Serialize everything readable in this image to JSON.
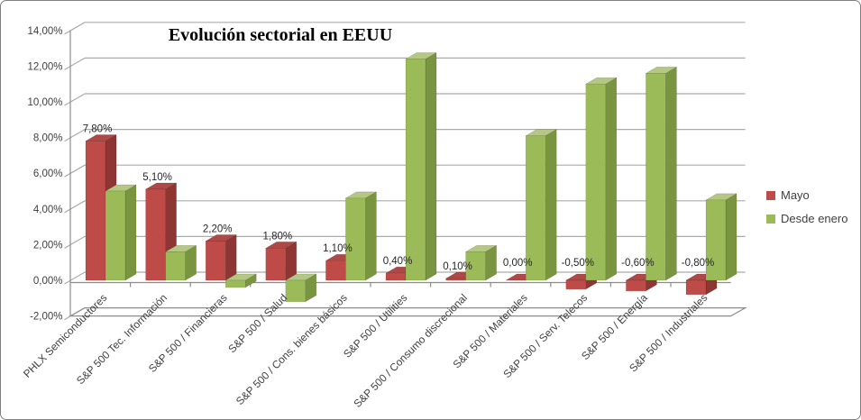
{
  "colors": {
    "background": "#FFFFFF",
    "border": "#7F7F7F",
    "gridline": "#ABABAB",
    "axis_line": "#8C8C8C",
    "axis_text": "#3F3F3F",
    "data_label_text": "#262626",
    "mayo_front": "#BE4B48",
    "mayo_top": "#AD4946",
    "mayo_side": "#8E3634",
    "desde_front": "#9BBB59",
    "desde_top": "#B4C883",
    "desde_side": "#7A9540"
  },
  "legend": {
    "items": [
      {
        "label": "Mayo",
        "color": "#BE4B48"
      },
      {
        "label": "Desde enero",
        "color": "#9BBB59"
      }
    ]
  },
  "chart_data": {
    "type": "bar",
    "style": "3d-clustered-column",
    "title": "Evolución sectorial en EEUU",
    "xlabel": "",
    "ylabel": "",
    "ylim": [
      -2,
      14
    ],
    "grid": true,
    "legend_position": "right",
    "categories": [
      "PHLX Semiconductores",
      "S&P 500 Tec. Información",
      "S&P 500 / Financieras",
      "S&P 500 / Salud",
      "S&P 500 / Cons. bienes básicos",
      "S&P 500 / Utilities",
      "S&P 500 / Consumo discrecional",
      "S&P 500 / Materiales",
      "S&P 500 / Serv. Telecos",
      "S&P 500 / Energía",
      "S&P 500 / Industriales"
    ],
    "series": [
      {
        "name": "Mayo",
        "color": "#BE4B48",
        "values": [
          7.8,
          5.1,
          2.2,
          1.8,
          1.1,
          0.4,
          0.1,
          0.0,
          -0.5,
          -0.6,
          -0.8
        ],
        "data_labels": [
          "7,80%",
          "5,10%",
          "2,20%",
          "1,80%",
          "1,10%",
          "0,40%",
          "0,10%",
          "0,00%",
          "-0,50%",
          "-0,60%",
          "-0,80%"
        ]
      },
      {
        "name": "Desde enero",
        "color": "#9BBB59",
        "values": [
          5.0,
          1.6,
          -0.4,
          -1.2,
          4.6,
          12.4,
          1.6,
          8.1,
          11.0,
          11.6,
          4.5
        ],
        "data_labels": []
      }
    ],
    "y_axis": {
      "ticks": [
        {
          "value": 14,
          "label": "14,00%"
        },
        {
          "value": 12,
          "label": "12,00%"
        },
        {
          "value": 10,
          "label": "10,00%"
        },
        {
          "value": 8,
          "label": "8,00%"
        },
        {
          "value": 6,
          "label": "6,00%"
        },
        {
          "value": 4,
          "label": "4,00%"
        },
        {
          "value": 2,
          "label": "2,00%"
        },
        {
          "value": 0,
          "label": "0,00%"
        },
        {
          "value": -2,
          "label": "-2,00%"
        }
      ]
    }
  }
}
